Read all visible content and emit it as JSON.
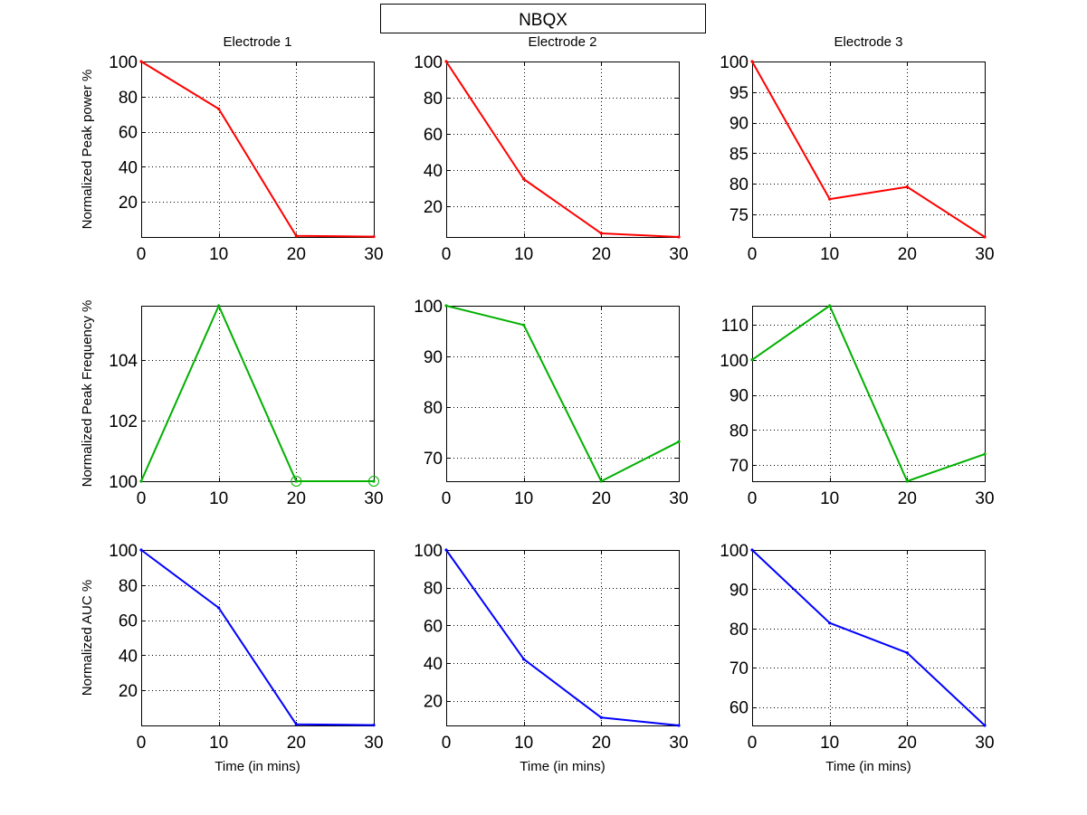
{
  "figure": {
    "title": "NBQX"
  },
  "chart_data": [
    {
      "type": "line",
      "title": "Electrode 1",
      "xlabel": "",
      "ylabel": "Normalized Peak power %",
      "xlim": [
        0,
        30
      ],
      "ylim": [
        0,
        100
      ],
      "xticks": [
        0,
        10,
        20,
        30
      ],
      "yticks": [
        20,
        40,
        60,
        80,
        100
      ],
      "grid": true,
      "color": "#ff0000",
      "x": [
        0,
        10,
        20,
        30
      ],
      "y": [
        100,
        73,
        0.6,
        0.2
      ]
    },
    {
      "type": "line",
      "title": "Electrode 2",
      "xlabel": "",
      "ylabel": "",
      "xlim": [
        0,
        30
      ],
      "ylim": [
        3,
        100
      ],
      "xticks": [
        0,
        10,
        20,
        30
      ],
      "yticks": [
        20,
        40,
        60,
        80,
        100
      ],
      "grid": true,
      "color": "#ff0000",
      "x": [
        0,
        10,
        20,
        30
      ],
      "y": [
        100,
        35,
        5,
        3
      ]
    },
    {
      "type": "line",
      "title": "Electrode 3",
      "xlabel": "",
      "ylabel": "",
      "xlim": [
        0,
        30
      ],
      "ylim": [
        71.3,
        100
      ],
      "xticks": [
        0,
        10,
        20,
        30
      ],
      "yticks": [
        75,
        80,
        85,
        90,
        95,
        100
      ],
      "grid": true,
      "color": "#ff0000",
      "x": [
        0,
        10,
        20,
        30
      ],
      "y": [
        100,
        77.5,
        79.5,
        71.3
      ]
    },
    {
      "type": "line",
      "title": "",
      "xlabel": "",
      "ylabel": "Normalized Peak Frequency %",
      "xlim": [
        0,
        30
      ],
      "ylim": [
        100,
        105.8
      ],
      "xticks": [
        0,
        10,
        20,
        30
      ],
      "yticks": [
        100,
        102,
        104
      ],
      "grid": true,
      "color": "#00b000",
      "x": [
        0,
        10,
        20,
        30
      ],
      "y": [
        100,
        105.8,
        100,
        100
      ],
      "circle_markers": [
        20,
        30
      ]
    },
    {
      "type": "line",
      "title": "",
      "xlabel": "",
      "ylabel": "",
      "xlim": [
        0,
        30
      ],
      "ylim": [
        65.4,
        100
      ],
      "xticks": [
        0,
        10,
        20,
        30
      ],
      "yticks": [
        70,
        80,
        90,
        100
      ],
      "grid": true,
      "color": "#00b000",
      "x": [
        0,
        10,
        20,
        30
      ],
      "y": [
        100,
        96.2,
        65.4,
        73.2
      ]
    },
    {
      "type": "line",
      "title": "",
      "xlabel": "",
      "ylabel": "",
      "xlim": [
        0,
        30
      ],
      "ylim": [
        65.4,
        115.4
      ],
      "xticks": [
        0,
        10,
        20,
        30
      ],
      "yticks": [
        70,
        80,
        90,
        100,
        110
      ],
      "grid": true,
      "color": "#00b000",
      "x": [
        0,
        10,
        20,
        30
      ],
      "y": [
        100,
        115.4,
        65.4,
        73.1
      ]
    },
    {
      "type": "line",
      "title": "",
      "xlabel": "Time (in mins)",
      "ylabel": "Normalized AUC %",
      "xlim": [
        0,
        30
      ],
      "ylim": [
        0,
        100
      ],
      "xticks": [
        0,
        10,
        20,
        30
      ],
      "yticks": [
        20,
        40,
        60,
        80,
        100
      ],
      "grid": true,
      "color": "#0000ff",
      "x": [
        0,
        10,
        20,
        30
      ],
      "y": [
        100,
        67,
        0.6,
        0.2
      ]
    },
    {
      "type": "line",
      "title": "",
      "xlabel": "Time (in mins)",
      "ylabel": "",
      "xlim": [
        0,
        30
      ],
      "ylim": [
        6.8,
        100
      ],
      "xticks": [
        0,
        10,
        20,
        30
      ],
      "yticks": [
        20,
        40,
        60,
        80,
        100
      ],
      "grid": true,
      "color": "#0000ff",
      "x": [
        0,
        10,
        20,
        30
      ],
      "y": [
        100,
        42,
        11,
        6.8
      ]
    },
    {
      "type": "line",
      "title": "",
      "xlabel": "Time (in mins)",
      "ylabel": "",
      "xlim": [
        0,
        30
      ],
      "ylim": [
        55.3,
        100
      ],
      "xticks": [
        0,
        10,
        20,
        30
      ],
      "yticks": [
        60,
        70,
        80,
        90,
        100
      ],
      "grid": true,
      "color": "#0000ff",
      "x": [
        0,
        10,
        20,
        30
      ],
      "y": [
        100,
        81.4,
        73.8,
        55.3
      ]
    }
  ]
}
